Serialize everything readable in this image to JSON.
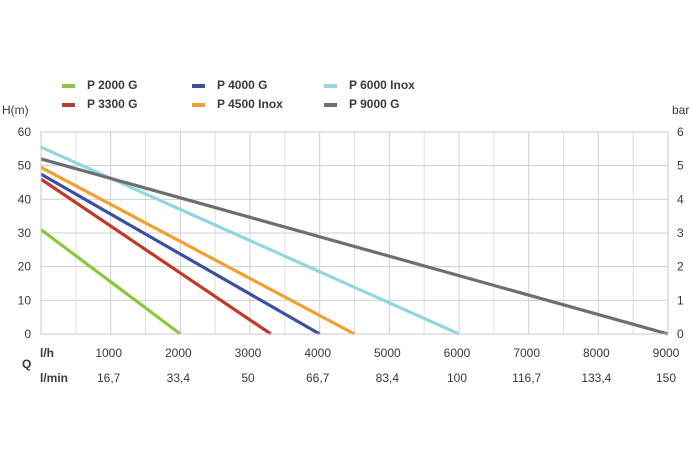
{
  "chart_data": {
    "type": "line",
    "title": "",
    "y_left_label": "H(m)",
    "y_right_label": "bar",
    "q_label": "Q",
    "x_unit_label": "l/h",
    "x2_unit_label": "l/min",
    "xlim": [
      0,
      9000
    ],
    "ylim": [
      0,
      60
    ],
    "y2lim": [
      0,
      6
    ],
    "x_ticks": [
      1000,
      2000,
      3000,
      4000,
      5000,
      6000,
      7000,
      8000,
      9000
    ],
    "x_tick_labels": [
      "1000",
      "2000",
      "3000",
      "4000",
      "5000",
      "6000",
      "7000",
      "8000",
      "9000"
    ],
    "x2_tick_labels": [
      "16,7",
      "33,4",
      "50",
      "66,7",
      "83,4",
      "100",
      "116,7",
      "133,4",
      "150"
    ],
    "y_ticks": [
      0,
      10,
      20,
      30,
      40,
      50,
      60
    ],
    "y_tick_labels": [
      "0",
      "10",
      "20",
      "30",
      "40",
      "50",
      "60"
    ],
    "y2_ticks": [
      0,
      1,
      2,
      3,
      4,
      5,
      6
    ],
    "y2_tick_labels": [
      "0",
      "1",
      "2",
      "3",
      "4",
      "5",
      "6"
    ],
    "grid": true,
    "legend_position": "top",
    "series": [
      {
        "name": "P 2000 G",
        "color": "#8cc63f",
        "x": [
          0,
          2000
        ],
        "y": [
          31,
          0
        ]
      },
      {
        "name": "P 3300 G",
        "color": "#c0392b",
        "x": [
          0,
          3300
        ],
        "y": [
          46,
          0
        ]
      },
      {
        "name": "P 4000 G",
        "color": "#3d4fa0",
        "x": [
          0,
          4000
        ],
        "y": [
          47.5,
          0
        ]
      },
      {
        "name": "P 4500 Inox",
        "color": "#f0a030",
        "x": [
          0,
          4500
        ],
        "y": [
          49.5,
          0
        ]
      },
      {
        "name": "P 6000 Inox",
        "color": "#8fd8e0",
        "x": [
          0,
          6000
        ],
        "y": [
          55.5,
          0
        ]
      },
      {
        "name": "P 9000 G",
        "color": "#6d6e71",
        "x": [
          0,
          9000
        ],
        "y": [
          52,
          0
        ]
      }
    ]
  }
}
